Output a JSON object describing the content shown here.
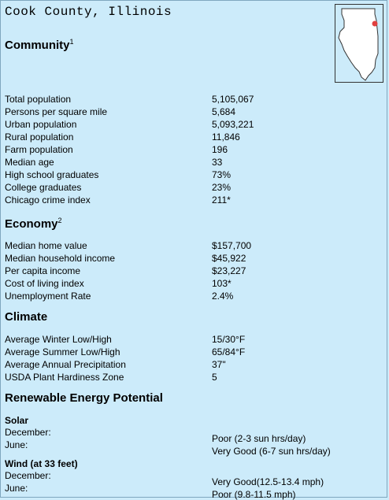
{
  "title": "Cook County, Illinois",
  "map": {
    "state": "Illinois",
    "marker_color": "#e04040"
  },
  "community": {
    "heading": "Community",
    "footnote": "1",
    "rows": [
      {
        "label": "Total population",
        "value": "5,105,067"
      },
      {
        "label": "Persons per square mile",
        "value": "5,684"
      },
      {
        "label": "Urban population",
        "value": "5,093,221"
      },
      {
        "label": "Rural population",
        "value": "11,846"
      },
      {
        "label": "Farm population",
        "value": "196"
      },
      {
        "label": "Median age",
        "value": "33"
      },
      {
        "label": "High school graduates",
        "value": "73%"
      },
      {
        "label": "College graduates",
        "value": "23%"
      },
      {
        "label": "Chicago crime index",
        "value": "211*"
      }
    ]
  },
  "economy": {
    "heading": "Economy",
    "footnote": "2",
    "rows": [
      {
        "label": "Median home value",
        "value": "$157,700"
      },
      {
        "label": "Median household income",
        "value": "$45,922"
      },
      {
        "label": "Per capita income",
        "value": "$23,227"
      },
      {
        "label": "Cost of living index",
        "value": "103*"
      },
      {
        "label": "Unemployment Rate",
        "value": "2.4%"
      }
    ]
  },
  "climate": {
    "heading": "Climate",
    "rows": [
      {
        "label": "Average Winter Low/High",
        "value": "15/30°F"
      },
      {
        "label": "Average Summer Low/High",
        "value": "65/84°F"
      },
      {
        "label": "Average Annual Precipitation",
        "value": "37\""
      },
      {
        "label": "USDA Plant Hardiness Zone",
        "value": "5"
      }
    ]
  },
  "energy": {
    "heading": "Renewable Energy Potential",
    "solar": {
      "label": "Solar",
      "rows": [
        {
          "label": "December:",
          "value": "Poor (2-3 sun hrs/day)"
        },
        {
          "label": "June:",
          "value": "Very Good (6-7 sun hrs/day)"
        }
      ]
    },
    "wind": {
      "label": "Wind (at 33 feet)",
      "rows": [
        {
          "label": "December:",
          "value": "Very Good(12.5-13.4 mph)"
        },
        {
          "label": "June:",
          "value": "Poor (9.8-11.5 mph)"
        }
      ]
    }
  }
}
